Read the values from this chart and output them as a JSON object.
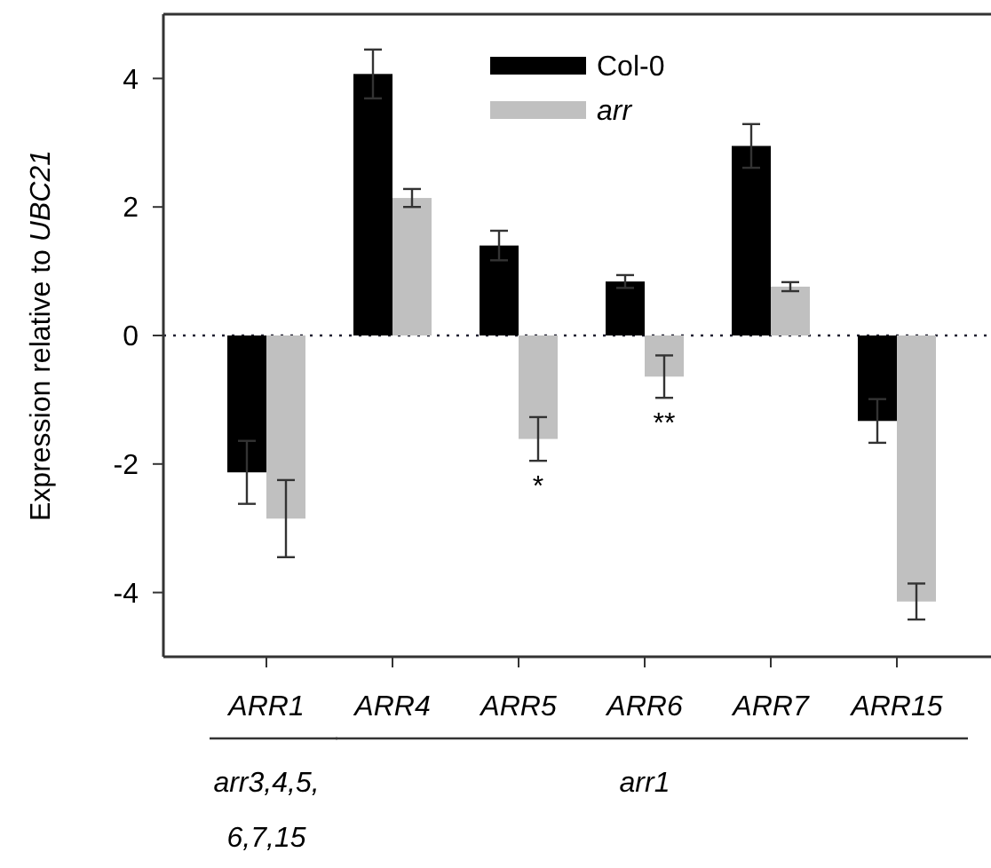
{
  "chart_data": {
    "type": "bar",
    "ylabel": "Expression relative to UBC21",
    "categories": [
      "ARR1",
      "ARR4",
      "ARR5",
      "ARR6",
      "ARR7",
      "ARR15"
    ],
    "series": [
      {
        "name": "Col-0",
        "color": "#000000",
        "values": [
          -2.13,
          4.07,
          1.4,
          0.84,
          2.95,
          -1.33
        ],
        "errors": [
          0.49,
          0.38,
          0.23,
          0.1,
          0.34,
          0.34
        ]
      },
      {
        "name": "arr",
        "color": "#c0c0c0",
        "values": [
          -2.85,
          2.14,
          -1.61,
          -0.64,
          0.76,
          -4.14
        ],
        "errors": [
          0.6,
          0.14,
          0.34,
          0.33,
          0.07,
          0.28
        ]
      }
    ],
    "ylim": [
      -5,
      5
    ],
    "yticks": [
      -4,
      -2,
      0,
      2,
      4
    ],
    "grid": false,
    "legend": "top",
    "ref_lines": [
      {
        "axis": "y",
        "value": 0,
        "line_style": "dotted"
      }
    ],
    "annotations": [
      {
        "text": "*",
        "x": "ARR5",
        "y": -1.61
      },
      {
        "text": "**",
        "x": "ARR6",
        "y": -0.64
      },
      "arr3,4,5,\n6,7,15",
      "arr1"
    ]
  }
}
